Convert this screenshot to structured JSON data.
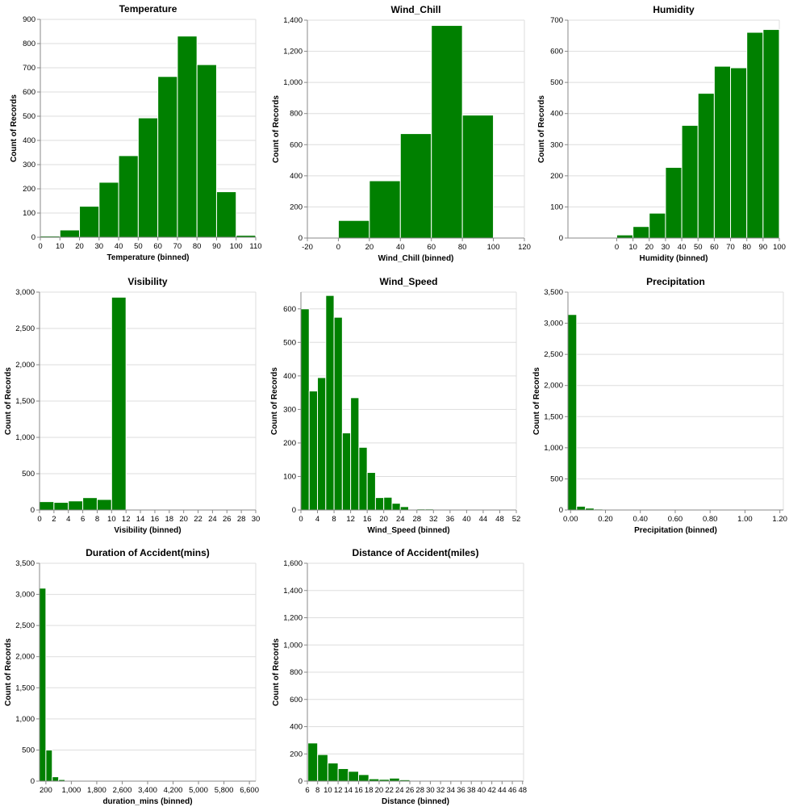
{
  "bar_color": "#008000",
  "chart_data": [
    {
      "type": "bar",
      "title": "Temperature",
      "xlabel": "Temperature (binned)",
      "ylabel": "Count of Records",
      "xlim": [
        0,
        110
      ],
      "ylim": [
        0,
        900
      ],
      "grid": true,
      "x_ticks": [
        "0",
        "10",
        "20",
        "30",
        "40",
        "50",
        "60",
        "70",
        "80",
        "90",
        "100",
        "110"
      ],
      "y_ticks": [
        "0",
        "100",
        "200",
        "300",
        "400",
        "500",
        "600",
        "700",
        "800",
        "900"
      ],
      "bins": [
        [
          0,
          10,
          5
        ],
        [
          10,
          20,
          30
        ],
        [
          20,
          30,
          128
        ],
        [
          30,
          40,
          227
        ],
        [
          40,
          50,
          337
        ],
        [
          50,
          60,
          493
        ],
        [
          60,
          70,
          664
        ],
        [
          70,
          80,
          831
        ],
        [
          80,
          90,
          713
        ],
        [
          90,
          100,
          188
        ],
        [
          100,
          110,
          8
        ]
      ]
    },
    {
      "type": "bar",
      "title": "Wind_Chill",
      "xlabel": "Wind_Chill (binned)",
      "ylabel": "Count of Records",
      "xlim": [
        -20,
        120
      ],
      "ylim": [
        0,
        1400
      ],
      "grid": true,
      "x_ticks": [
        "-20",
        "0",
        "20",
        "40",
        "60",
        "80",
        "100",
        "120"
      ],
      "y_ticks": [
        "0",
        "200",
        "400",
        "600",
        "800",
        "1,000",
        "1,200",
        "1,400"
      ],
      "bins": [
        [
          -20,
          0,
          5
        ],
        [
          0,
          20,
          113
        ],
        [
          20,
          40,
          368
        ],
        [
          40,
          60,
          671
        ],
        [
          60,
          80,
          1366
        ],
        [
          80,
          100,
          790
        ],
        [
          100,
          120,
          5
        ]
      ]
    },
    {
      "type": "bar",
      "title": "Humidity",
      "xlabel": "Humidity (binned)",
      "ylabel": "Count of Records",
      "xlim": [
        -30,
        100
      ],
      "ylim": [
        0,
        700
      ],
      "grid": true,
      "x_ticks": [
        "0",
        "10",
        "20",
        "30",
        "40",
        "50",
        "60",
        "70",
        "80",
        "90",
        "100"
      ],
      "y_ticks": [
        "0",
        "100",
        "200",
        "300",
        "400",
        "500",
        "600",
        "700"
      ],
      "bins": [
        [
          0,
          10,
          10
        ],
        [
          10,
          20,
          37
        ],
        [
          20,
          30,
          80
        ],
        [
          30,
          40,
          227
        ],
        [
          40,
          50,
          362
        ],
        [
          50,
          60,
          465
        ],
        [
          60,
          70,
          552
        ],
        [
          70,
          80,
          547
        ],
        [
          80,
          90,
          661
        ],
        [
          90,
          100,
          670
        ]
      ]
    },
    {
      "type": "bar",
      "title": "Visibility",
      "xlabel": "Visibility (binned)",
      "ylabel": "Count of Records",
      "xlim": [
        0,
        30
      ],
      "ylim": [
        0,
        3000
      ],
      "grid": true,
      "x_ticks": [
        "0",
        "2",
        "4",
        "6",
        "8",
        "10",
        "12",
        "14",
        "16",
        "18",
        "20",
        "22",
        "24",
        "26",
        "28",
        "30"
      ],
      "y_ticks": [
        "0",
        "500",
        "1,000",
        "1,500",
        "2,000",
        "2,500",
        "3,000"
      ],
      "bins": [
        [
          0,
          2,
          115
        ],
        [
          2,
          4,
          105
        ],
        [
          4,
          6,
          125
        ],
        [
          6,
          8,
          170
        ],
        [
          8,
          10,
          145
        ],
        [
          10,
          12,
          2930
        ],
        [
          12,
          14,
          5
        ],
        [
          20,
          22,
          5
        ]
      ]
    },
    {
      "type": "bar",
      "title": "Wind_Speed",
      "xlabel": "Wind_Speed (binned)",
      "ylabel": "Count of Records",
      "xlim": [
        0,
        52
      ],
      "ylim": [
        0,
        650
      ],
      "grid": true,
      "x_ticks": [
        "0",
        "4",
        "8",
        "12",
        "16",
        "20",
        "24",
        "28",
        "32",
        "36",
        "40",
        "44",
        "48",
        "52"
      ],
      "y_ticks": [
        "0",
        "100",
        "200",
        "300",
        "400",
        "500",
        "600"
      ],
      "bins": [
        [
          0,
          2,
          600
        ],
        [
          2,
          4,
          355
        ],
        [
          4,
          6,
          395
        ],
        [
          6,
          8,
          640
        ],
        [
          8,
          10,
          575
        ],
        [
          10,
          12,
          230
        ],
        [
          12,
          14,
          335
        ],
        [
          14,
          16,
          187
        ],
        [
          16,
          18,
          112
        ],
        [
          18,
          20,
          37
        ],
        [
          20,
          22,
          38
        ],
        [
          22,
          24,
          20
        ],
        [
          24,
          26,
          10
        ],
        [
          26,
          28,
          2
        ],
        [
          28,
          30,
          3
        ],
        [
          30,
          32,
          3
        ],
        [
          36,
          38,
          1
        ],
        [
          48,
          50,
          2
        ],
        [
          50,
          52,
          2
        ]
      ]
    },
    {
      "type": "bar",
      "title": "Precipitation",
      "xlabel": "Precipitation (binned)",
      "ylabel": "Count of Records",
      "xlim": [
        -0.015,
        1.22
      ],
      "ylim": [
        0,
        3500
      ],
      "grid": true,
      "x_ticks": [
        "0.00",
        "0.20",
        "0.40",
        "0.60",
        "0.80",
        "1.00",
        "1.20"
      ],
      "y_ticks": [
        "0",
        "500",
        "1,000",
        "1,500",
        "2,000",
        "2,500",
        "3,000",
        "3,500"
      ],
      "bins": [
        [
          -0.015,
          0.035,
          3140
        ],
        [
          0.035,
          0.085,
          60
        ],
        [
          0.085,
          0.135,
          30
        ],
        [
          0.135,
          0.185,
          15
        ],
        [
          0.185,
          0.235,
          10
        ],
        [
          0.235,
          0.285,
          8
        ],
        [
          0.285,
          0.335,
          5
        ],
        [
          0.335,
          0.385,
          3
        ]
      ]
    },
    {
      "type": "bar",
      "title": "Duration of Accident(mins)",
      "xlabel": "duration_mins (binned)",
      "ylabel": "Count of Records",
      "xlim": [
        0,
        6800
      ],
      "ylim": [
        0,
        3500
      ],
      "grid": true,
      "x_ticks": [
        "200",
        "1,000",
        "1,800",
        "2,600",
        "3,400",
        "4,200",
        "5,000",
        "5,800",
        "6,600"
      ],
      "y_ticks": [
        "0",
        "500",
        "1,000",
        "1,500",
        "2,000",
        "2,500",
        "3,000",
        "3,500"
      ],
      "bins": [
        [
          0,
          200,
          3100
        ],
        [
          200,
          400,
          500
        ],
        [
          400,
          600,
          70
        ],
        [
          600,
          800,
          25
        ],
        [
          800,
          1000,
          8
        ],
        [
          1000,
          1200,
          3
        ]
      ]
    },
    {
      "type": "bar",
      "title": "Distance of Accident(miles)",
      "xlabel": "Distance (binned)",
      "ylabel": "Count of Records",
      "xlim": [
        6,
        48.2
      ],
      "ylim": [
        0,
        1600
      ],
      "grid": true,
      "x_ticks": [
        "6",
        "8",
        "10",
        "12",
        "14",
        "16",
        "18",
        "20",
        "22",
        "24",
        "26",
        "28",
        "30",
        "32",
        "34",
        "36",
        "38",
        "40",
        "42",
        "44",
        "46",
        "48"
      ],
      "y_ticks": [
        "0",
        "200",
        "400",
        "600",
        "800",
        "1,000",
        "1,200",
        "1,400",
        "1,600"
      ],
      "bins": [
        [
          6,
          6.1,
          440
        ],
        [
          6.1,
          8,
          280
        ],
        [
          8,
          10,
          195
        ],
        [
          10,
          12,
          133
        ],
        [
          12,
          14,
          92
        ],
        [
          14,
          16,
          72
        ],
        [
          16,
          18,
          48
        ],
        [
          18,
          20,
          17
        ],
        [
          20,
          22,
          13
        ],
        [
          22,
          24,
          22
        ],
        [
          24,
          26,
          10
        ],
        [
          26,
          28,
          4
        ],
        [
          28,
          30,
          3
        ],
        [
          30,
          32,
          5
        ],
        [
          32,
          34,
          2
        ],
        [
          34,
          36,
          2
        ],
        [
          36,
          38,
          2
        ],
        [
          48,
          48.2,
          5
        ]
      ]
    }
  ]
}
